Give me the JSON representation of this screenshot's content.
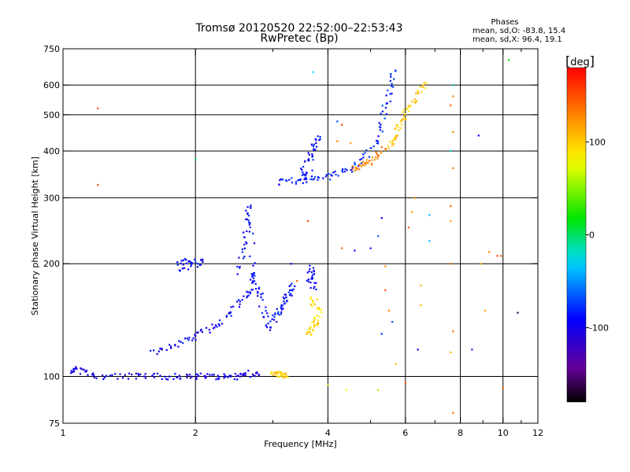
{
  "header": {
    "title_line1": "Tromsø 20120520 22:52:00–22:53:43",
    "title_line2": "RwPretec (Bp)"
  },
  "phase_stats": {
    "heading": "Phases",
    "line_o": "mean, sd,O:  -83.8,  15.4",
    "line_x": "mean, sd,X:   96.4,  19.1"
  },
  "colorbar": {
    "unit": "deg",
    "ticks": [
      "100",
      "0",
      "-100"
    ],
    "tick_values": [
      100,
      0,
      -100
    ],
    "range": [
      -180,
      180
    ],
    "colormap": "rainbow (black-violet-blue-cyan-green-yellow-red)"
  },
  "chart_data": {
    "type": "scatter",
    "xlabel": "Frequency [MHz]",
    "ylabel": "Stationary phase Virtual Height [km]",
    "x_scale": "log",
    "y_scale": "log",
    "xlim": [
      1,
      12
    ],
    "ylim": [
      75,
      750
    ],
    "x_ticks": [
      1,
      2,
      4,
      6,
      8,
      10,
      12
    ],
    "x_tick_labels": [
      "1",
      "2",
      "4",
      "6",
      "8",
      "10",
      "12"
    ],
    "y_ticks": [
      75,
      100,
      200,
      300,
      400,
      500,
      600,
      750
    ],
    "y_tick_labels": [
      "75",
      "100",
      "200",
      "300",
      "400",
      "500",
      "600",
      "750"
    ],
    "x_grid": [
      2,
      4,
      6,
      8,
      10
    ],
    "y_grid": [
      100,
      200,
      300,
      400,
      500,
      600
    ],
    "grid": true,
    "traces": [
      {
        "desc": "E-layer trace",
        "phase": -100,
        "points": [
          [
            1.05,
            103
          ],
          [
            1.07,
            105
          ],
          [
            1.1,
            104
          ],
          [
            1.13,
            102
          ],
          [
            1.2,
            100
          ],
          [
            1.3,
            100
          ],
          [
            1.4,
            100
          ],
          [
            1.5,
            100
          ],
          [
            1.6,
            100
          ],
          [
            1.7,
            100
          ],
          [
            1.8,
            100
          ],
          [
            1.9,
            100
          ],
          [
            2.0,
            100
          ],
          [
            2.1,
            100
          ],
          [
            2.2,
            100
          ],
          [
            2.3,
            100
          ],
          [
            2.4,
            100
          ],
          [
            2.5,
            100
          ],
          [
            2.6,
            101
          ],
          [
            2.7,
            102
          ],
          [
            2.8,
            101
          ]
        ]
      },
      {
        "desc": "Es layer segment",
        "phase": 100,
        "points": [
          [
            3.0,
            101
          ],
          [
            3.05,
            102
          ],
          [
            3.1,
            101
          ],
          [
            3.15,
            101
          ],
          [
            3.2,
            101
          ],
          [
            3.25,
            101
          ]
        ]
      },
      {
        "desc": "F1 O-mode trace",
        "phase": -95,
        "points": [
          [
            1.6,
            115
          ],
          [
            1.7,
            118
          ],
          [
            1.8,
            122
          ],
          [
            1.9,
            125
          ],
          [
            2.0,
            128
          ],
          [
            2.1,
            132
          ],
          [
            2.2,
            136
          ],
          [
            2.3,
            142
          ],
          [
            2.4,
            148
          ],
          [
            2.5,
            155
          ],
          [
            2.6,
            162
          ],
          [
            2.65,
            170
          ],
          [
            2.7,
            180
          ],
          [
            2.72,
            190
          ]
        ]
      },
      {
        "desc": "F1 cusp cluster",
        "phase": -90,
        "points": [
          [
            2.5,
            190
          ],
          [
            2.55,
            210
          ],
          [
            2.6,
            230
          ],
          [
            2.62,
            250
          ],
          [
            2.64,
            270
          ],
          [
            2.66,
            290
          ],
          [
            2.7,
            200
          ],
          [
            2.75,
            175
          ],
          [
            2.8,
            165
          ],
          [
            2.85,
            150
          ],
          [
            2.9,
            140
          ],
          [
            2.95,
            135
          ]
        ]
      },
      {
        "desc": "F1 X-mode cluster",
        "phase": -85,
        "points": [
          [
            3.0,
            140
          ],
          [
            3.05,
            145
          ],
          [
            3.1,
            150
          ],
          [
            3.15,
            155
          ],
          [
            3.2,
            160
          ],
          [
            3.25,
            165
          ],
          [
            3.3,
            170
          ],
          [
            3.35,
            175
          ]
        ]
      },
      {
        "desc": "F1 X-mode yellow",
        "phase": 95,
        "points": [
          [
            3.6,
            130
          ],
          [
            3.65,
            133
          ],
          [
            3.7,
            136
          ],
          [
            3.75,
            140
          ],
          [
            3.8,
            145
          ],
          [
            3.85,
            150
          ],
          [
            3.7,
            160
          ],
          [
            3.65,
            155
          ]
        ]
      },
      {
        "desc": "F2 O-mode trace",
        "phase": -80,
        "points": [
          [
            3.05,
            330
          ],
          [
            3.2,
            332
          ],
          [
            3.4,
            333
          ],
          [
            3.6,
            335
          ],
          [
            3.8,
            338
          ],
          [
            4.0,
            342
          ],
          [
            4.2,
            348
          ],
          [
            4.4,
            355
          ],
          [
            4.6,
            365
          ],
          [
            4.8,
            380
          ],
          [
            5.0,
            400
          ],
          [
            5.2,
            430
          ],
          [
            5.3,
            470
          ],
          [
            5.4,
            520
          ],
          [
            5.5,
            570
          ],
          [
            5.6,
            620
          ],
          [
            5.65,
            650
          ]
        ]
      },
      {
        "desc": "F2 O-mode blob",
        "phase": -90,
        "points": [
          [
            3.5,
            360
          ],
          [
            3.6,
            380
          ],
          [
            3.7,
            400
          ],
          [
            3.75,
            420
          ],
          [
            3.8,
            440
          ],
          [
            3.6,
            345
          ],
          [
            3.5,
            340
          ],
          [
            3.55,
            350
          ]
        ]
      },
      {
        "desc": "F2 X-mode trace",
        "phase": 100,
        "points": [
          [
            5.5,
            400
          ],
          [
            5.6,
            420
          ],
          [
            5.7,
            440
          ],
          [
            5.8,
            460
          ],
          [
            5.9,
            480
          ],
          [
            6.0,
            500
          ],
          [
            6.1,
            520
          ],
          [
            6.3,
            550
          ],
          [
            6.5,
            580
          ],
          [
            6.7,
            600
          ]
        ]
      },
      {
        "desc": "F2 X-mode orange",
        "phase": 130,
        "points": [
          [
            4.6,
            360
          ],
          [
            4.7,
            362
          ],
          [
            4.8,
            365
          ],
          [
            4.9,
            370
          ],
          [
            5.0,
            375
          ],
          [
            5.2,
            390
          ],
          [
            5.4,
            410
          ]
        ]
      },
      {
        "desc": "F1 upper blob",
        "phase": -90,
        "points": [
          [
            1.8,
            200
          ],
          [
            1.9,
            205
          ],
          [
            2.0,
            200
          ],
          [
            2.1,
            205
          ],
          [
            1.85,
            195
          ],
          [
            1.95,
            198
          ]
        ]
      },
      {
        "desc": "F1 layer mid blob",
        "phase": -90,
        "points": [
          [
            3.6,
            175
          ],
          [
            3.65,
            185
          ],
          [
            3.7,
            195
          ],
          [
            3.75,
            170
          ],
          [
            3.6,
            200
          ]
        ]
      }
    ],
    "noise": [
      {
        "x": 1.2,
        "y": 520,
        "phase": 150
      },
      {
        "x": 1.2,
        "y": 325,
        "phase": 150
      },
      {
        "x": 2.0,
        "y": 380,
        "phase": 0
      },
      {
        "x": 3.7,
        "y": 650,
        "phase": -30
      },
      {
        "x": 4.3,
        "y": 470,
        "phase": 150
      },
      {
        "x": 4.2,
        "y": 425,
        "phase": 130
      },
      {
        "x": 4.2,
        "y": 480,
        "phase": -70
      },
      {
        "x": 4.5,
        "y": 420,
        "phase": 120
      },
      {
        "x": 4.3,
        "y": 220,
        "phase": 140
      },
      {
        "x": 4.6,
        "y": 217,
        "phase": -90
      },
      {
        "x": 5.0,
        "y": 220,
        "phase": -95
      },
      {
        "x": 5.2,
        "y": 237,
        "phase": -60
      },
      {
        "x": 5.3,
        "y": 265,
        "phase": -90
      },
      {
        "x": 5.4,
        "y": 197,
        "phase": 130
      },
      {
        "x": 5.4,
        "y": 170,
        "phase": 150
      },
      {
        "x": 5.5,
        "y": 150,
        "phase": 130
      },
      {
        "x": 5.3,
        "y": 130,
        "phase": -80
      },
      {
        "x": 5.6,
        "y": 140,
        "phase": -70
      },
      {
        "x": 5.7,
        "y": 108,
        "phase": 110
      },
      {
        "x": 5.2,
        "y": 92,
        "phase": 60
      },
      {
        "x": 4.4,
        "y": 92,
        "phase": 80
      },
      {
        "x": 6.0,
        "y": 96,
        "phase": 140
      },
      {
        "x": 6.1,
        "y": 250,
        "phase": 140
      },
      {
        "x": 6.2,
        "y": 275,
        "phase": 120
      },
      {
        "x": 6.3,
        "y": 300,
        "phase": 130
      },
      {
        "x": 6.5,
        "y": 175,
        "phase": 110
      },
      {
        "x": 6.5,
        "y": 155,
        "phase": 110
      },
      {
        "x": 6.4,
        "y": 118,
        "phase": -100
      },
      {
        "x": 6.8,
        "y": 270,
        "phase": -40
      },
      {
        "x": 6.8,
        "y": 230,
        "phase": -40
      },
      {
        "x": 7.6,
        "y": 285,
        "phase": 140
      },
      {
        "x": 7.6,
        "y": 260,
        "phase": 120
      },
      {
        "x": 7.6,
        "y": 200,
        "phase": 130
      },
      {
        "x": 7.7,
        "y": 360,
        "phase": 130
      },
      {
        "x": 7.7,
        "y": 450,
        "phase": 130
      },
      {
        "x": 7.7,
        "y": 560,
        "phase": 130
      },
      {
        "x": 7.7,
        "y": 600,
        "phase": -20
      },
      {
        "x": 7.6,
        "y": 530,
        "phase": 140
      },
      {
        "x": 7.6,
        "y": 400,
        "phase": -20
      },
      {
        "x": 7.7,
        "y": 132,
        "phase": 140
      },
      {
        "x": 7.6,
        "y": 116,
        "phase": 110
      },
      {
        "x": 7.7,
        "y": 80,
        "phase": 140
      },
      {
        "x": 8.5,
        "y": 118,
        "phase": -80
      },
      {
        "x": 8.8,
        "y": 440,
        "phase": -90
      },
      {
        "x": 8.9,
        "y": 200,
        "phase": 110
      },
      {
        "x": 9.1,
        "y": 150,
        "phase": 120
      },
      {
        "x": 9.3,
        "y": 215,
        "phase": 130
      },
      {
        "x": 9.7,
        "y": 210,
        "phase": 150
      },
      {
        "x": 9.9,
        "y": 210,
        "phase": 150
      },
      {
        "x": 10.0,
        "y": 93,
        "phase": 140
      },
      {
        "x": 10.3,
        "y": 700,
        "phase": 20
      },
      {
        "x": 10.8,
        "y": 148,
        "phase": -160
      },
      {
        "x": 4.0,
        "y": 95,
        "phase": 60
      },
      {
        "x": 3.4,
        "y": 180,
        "phase": 140
      },
      {
        "x": 3.3,
        "y": 200,
        "phase": -100
      },
      {
        "x": 3.6,
        "y": 260,
        "phase": 150
      }
    ]
  }
}
